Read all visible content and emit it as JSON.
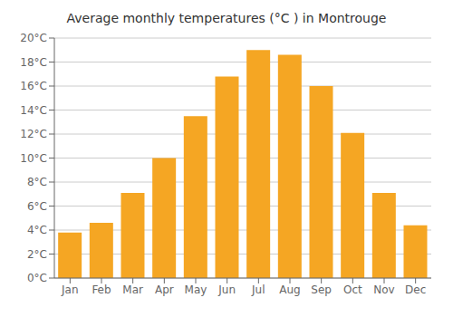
{
  "chart_data": {
    "type": "bar",
    "title": "Average monthly temperatures (°C ) in Montrouge",
    "categories": [
      "Jan",
      "Feb",
      "Mar",
      "Apr",
      "May",
      "Jun",
      "Jul",
      "Aug",
      "Sep",
      "Oct",
      "Nov",
      "Dec"
    ],
    "values": [
      3.8,
      4.6,
      7.1,
      10.0,
      13.5,
      16.8,
      19.0,
      18.6,
      16.0,
      12.1,
      7.1,
      4.4
    ],
    "color": "#F5A623",
    "ylim": [
      0,
      20
    ],
    "yticks": [
      {
        "value": 0,
        "label": "0°C"
      },
      {
        "value": 2,
        "label": "2°C"
      },
      {
        "value": 4,
        "label": "4°C"
      },
      {
        "value": 6,
        "label": "6°C"
      },
      {
        "value": 8,
        "label": "8°C"
      },
      {
        "value": 10,
        "label": "10°C"
      },
      {
        "value": 12,
        "label": "12°C"
      },
      {
        "value": 14,
        "label": "14°C"
      },
      {
        "value": 16,
        "label": "16°C"
      },
      {
        "value": 18,
        "label": "18°C"
      },
      {
        "value": 20,
        "label": "20°C"
      }
    ],
    "grid": true
  }
}
